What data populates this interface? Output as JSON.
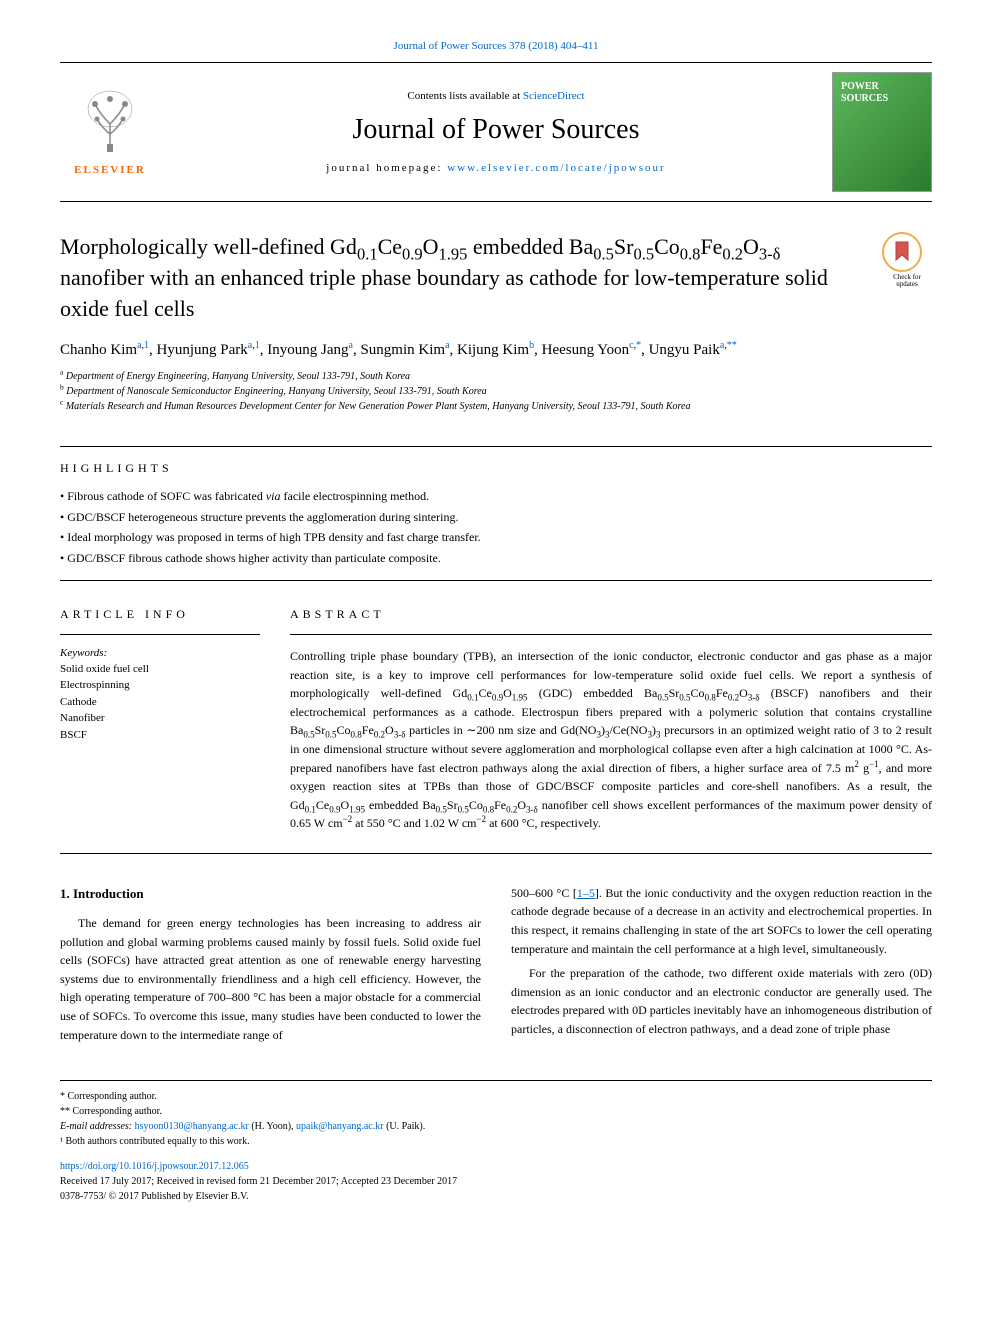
{
  "top_link": {
    "text": "Journal of Power Sources 378 (2018) 404–411",
    "href": "#"
  },
  "header": {
    "contents_prefix": "Contents lists available at ",
    "contents_link": "ScienceDirect",
    "journal_title": "Journal of Power Sources",
    "homepage_prefix": "journal homepage: ",
    "homepage_link": "www.elsevier.com/locate/jpowsour",
    "elsevier_label": "ELSEVIER",
    "cover_text": "POWER\nSOURCES"
  },
  "article": {
    "title_html": "Morphologically well-defined Gd<sub>0.1</sub>Ce<sub>0.9</sub>O<sub>1.95</sub> embedded Ba<sub>0.5</sub>Sr<sub>0.5</sub>Co<sub>0.8</sub>Fe<sub>0.2</sub>O<sub>3-δ</sub> nanofiber with an enhanced triple phase boundary as cathode for low-temperature solid oxide fuel cells",
    "check_updates": "Check for\nupdates",
    "authors_html": "Chanho Kim<sup><a href=\"#\">a</a>,<a href=\"#\">1</a></sup>, Hyunjung Park<sup><a href=\"#\">a</a>,<a href=\"#\">1</a></sup>, Inyoung Jang<sup><a href=\"#\">a</a></sup>, Sungmin Kim<sup><a href=\"#\">a</a></sup>, Kijung Kim<sup><a href=\"#\">b</a></sup>, Heesung Yoon<sup><a href=\"#\">c</a>,<a href=\"#\">*</a></sup>, Ungyu Paik<sup><a href=\"#\">a</a>,<a href=\"#\">**</a></sup>",
    "affiliations": [
      {
        "sup": "a",
        "text": "Department of Energy Engineering, Hanyang University, Seoul 133-791, South Korea"
      },
      {
        "sup": "b",
        "text": "Department of Nanoscale Semiconductor Engineering, Hanyang University, Seoul 133-791, South Korea"
      },
      {
        "sup": "c",
        "text": "Materials Research and Human Resources Development Center for New Generation Power Plant System, Hanyang University, Seoul 133-791, South Korea"
      }
    ]
  },
  "highlights": {
    "heading": "HIGHLIGHTS",
    "items_html": [
      "Fibrous cathode of SOFC was fabricated <i>via</i> facile electrospinning method.",
      "GDC/BSCF heterogeneous structure prevents the agglomeration during sintering.",
      "Ideal morphology was proposed in terms of high TPB density and fast charge transfer.",
      "GDC/BSCF fibrous cathode shows higher activity than particulate composite."
    ]
  },
  "info": {
    "heading": "ARTICLE INFO",
    "keywords_label": "Keywords:",
    "keywords": [
      "Solid oxide fuel cell",
      "Electrospinning",
      "Cathode",
      "Nanofiber",
      "BSCF"
    ]
  },
  "abstract": {
    "heading": "ABSTRACT",
    "text_html": "Controlling triple phase boundary (TPB), an intersection of the ionic conductor, electronic conductor and gas phase as a major reaction site, is a key to improve cell performances for low-temperature solid oxide fuel cells. We report a synthesis of morphologically well-defined Gd<sub>0.1</sub>Ce<sub>0.9</sub>O<sub>1.95</sub> (GDC) embedded Ba<sub>0.5</sub>Sr<sub>0.5</sub>Co<sub>0.8</sub>Fe<sub>0.2</sub>O<sub>3-δ</sub> (BSCF) nanofibers and their electrochemical performances as a cathode. Electrospun fibers prepared with a polymeric solution that contains crystalline Ba<sub>0.5</sub>Sr<sub>0.5</sub>Co<sub>0.8</sub>Fe<sub>0.2</sub>O<sub>3-δ</sub> particles in ∼200 nm size and Gd(NO<sub>3</sub>)<sub>3</sub>/Ce(NO<sub>3</sub>)<sub>3</sub> precursors in an optimized weight ratio of 3 to 2 result in one dimensional structure without severe agglomeration and morphological collapse even after a high calcination at 1000 °C. As-prepared nanofibers have fast electron pathways along the axial direction of fibers, a higher surface area of 7.5 m<sup>2</sup> g<sup>−1</sup>, and more oxygen reaction sites at TPBs than those of GDC/BSCF composite particles and core-shell nanofibers. As a result, the Gd<sub>0.1</sub>Ce<sub>0.9</sub>O<sub>1.95</sub> embedded Ba<sub>0.5</sub>Sr<sub>0.5</sub>Co<sub>0.8</sub>Fe<sub>0.2</sub>O<sub>3-δ</sub> nanofiber cell shows excellent performances of the maximum power density of 0.65 W cm<sup>−2</sup> at 550 °C and 1.02 W cm<sup>−2</sup> at 600 °C, respectively."
  },
  "body": {
    "intro_heading": "1. Introduction",
    "left_html": "The demand for green energy technologies has been increasing to address air pollution and global warming problems caused mainly by fossil fuels. Solid oxide fuel cells (SOFCs) have attracted great attention as one of renewable energy harvesting systems due to environmentally friendliness and a high cell efficiency. However, the high operating temperature of 700–800 °C has been a major obstacle for a commercial use of SOFCs. To overcome this issue, many studies have been conducted to lower the temperature down to the intermediate range of",
    "right_html_before_ref": "500–600 °C [",
    "right_ref": "1–5",
    "right_html_after_ref": "]. But the ionic conductivity and the oxygen reduction reaction in the cathode degrade because of a decrease in an activity and electrochemical properties. In this respect, it remains challenging in state of the art SOFCs to lower the cell operating temperature and maintain the cell performance at a high level, simultaneously.",
    "right_para2": "For the preparation of the cathode, two different oxide materials with zero (0D) dimension as an ionic conductor and an electronic conductor are generally used. The electrodes prepared with 0D particles inevitably have an inhomogeneous distribution of particles, a disconnection of electron pathways, and a dead zone of triple phase"
  },
  "footer": {
    "corr1": "* Corresponding author.",
    "corr2": "** Corresponding author.",
    "email_label": "E-mail addresses: ",
    "email1": "hsyoon0130@hanyang.ac.kr",
    "email1_name": " (H. Yoon), ",
    "email2": "upaik@hanyang.ac.kr",
    "email2_name": " (U. Paik).",
    "note1": "¹ Both authors contributed equally to this work.",
    "doi": "https://doi.org/10.1016/j.jpowsour.2017.12.065",
    "received": "Received 17 July 2017; Received in revised form 21 December 2017; Accepted 23 December 2017",
    "copyright": "0378-7753/ © 2017 Published by Elsevier B.V."
  },
  "colors": {
    "link": "#0066cc",
    "elsevier_orange": "#ff6600",
    "cover_green_light": "#5cb85c",
    "cover_green_dark": "#2d7a2d",
    "badge_orange": "#f0ad4e"
  }
}
